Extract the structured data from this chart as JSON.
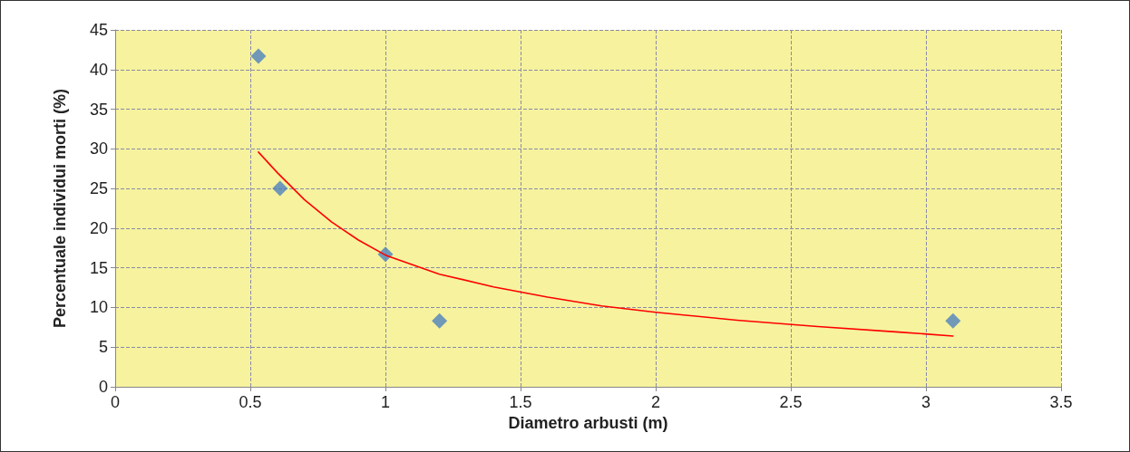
{
  "chart_data": {
    "type": "scatter",
    "xlabel": "Diametro arbusti (m)",
    "ylabel": "Percentuale individui morti (%)",
    "xlim": [
      0,
      3.5
    ],
    "xticks": [
      0,
      0.5,
      1,
      1.5,
      2,
      2.5,
      3,
      3.5
    ],
    "ylim": [
      0,
      45
    ],
    "yticks": [
      0,
      5,
      10,
      15,
      20,
      25,
      30,
      35,
      40,
      45
    ],
    "grid": true,
    "marker": "diamond",
    "series": [
      {
        "color": "#4f81bd",
        "x": [
          0.53,
          0.61,
          1.0,
          1.2,
          3.1
        ],
        "values": [
          41.7,
          25,
          16.7,
          8.3,
          8.3
        ]
      },
      {
        "type": "line",
        "color": "#ff0000",
        "marker": "none",
        "x": [
          0.53,
          0.6,
          0.7,
          0.8,
          0.9,
          1.0,
          1.2,
          1.4,
          1.6,
          1.8,
          2.0,
          2.3,
          2.6,
          2.9,
          3.1
        ],
        "values": [
          29.6,
          27,
          23.6,
          20.8,
          18.5,
          16.6,
          14.2,
          12.6,
          11.3,
          10.2,
          9.4,
          8.4,
          7.6,
          6.9,
          6.4
        ]
      }
    ]
  }
}
